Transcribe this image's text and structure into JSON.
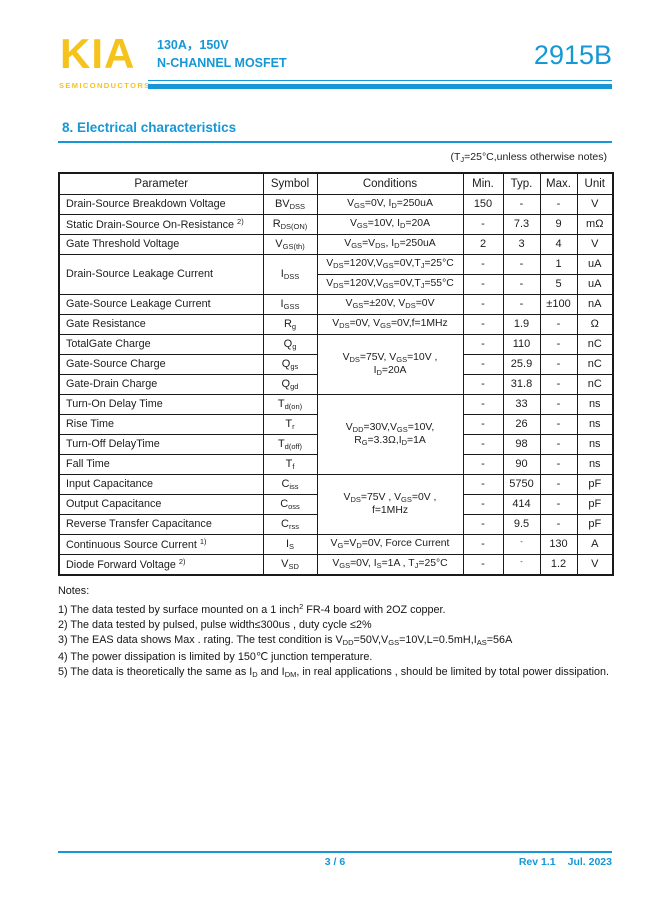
{
  "brand": {
    "logo": "KIA",
    "tagline": "SEMICONDUCTORS"
  },
  "header": {
    "spec_line1": "130A，150V",
    "spec_line2": "N-CHANNEL MOSFET",
    "part_number": "2915B"
  },
  "section": {
    "title": "8.  Electrical characteristics",
    "condition_note": "(T~J~=25°C,unless otherwise notes)"
  },
  "colors": {
    "accent_blue": "#1697d6",
    "brand_yellow": "#f6c31c",
    "table_border": "#1a1a1a"
  },
  "table": {
    "headers": [
      "Parameter",
      "Symbol",
      "Conditions",
      "Min.",
      "Typ.",
      "Max.",
      "Unit"
    ],
    "rows": [
      [
        {
          "t": "Drain-Source Breakdown Voltage",
          "col": "p"
        },
        {
          "t": "BV~DSS~",
          "col": "s"
        },
        {
          "t": "V~GS~=0V, I~D~=250uA",
          "col": "c"
        },
        {
          "t": "150",
          "col": "m"
        },
        {
          "t": "-",
          "col": "t"
        },
        {
          "t": "-",
          "col": "x"
        },
        {
          "t": "V",
          "col": "u"
        }
      ],
      [
        {
          "t": "Static Drain-Source On-Resistance ^2)^",
          "col": "p"
        },
        {
          "t": "R~DS(ON)~",
          "col": "s"
        },
        {
          "t": "V~GS~=10V, I~D~=20A",
          "col": "c"
        },
        {
          "t": "-",
          "col": "m"
        },
        {
          "t": "7.3",
          "col": "t"
        },
        {
          "t": "9",
          "col": "x"
        },
        {
          "t": "mΩ",
          "col": "u"
        }
      ],
      [
        {
          "t": "Gate Threshold Voltage",
          "col": "p"
        },
        {
          "t": "V~GS(th)~",
          "col": "s"
        },
        {
          "t": "V~GS~=V~DS~, I~D~=250uA",
          "col": "c"
        },
        {
          "t": "2",
          "col": "m"
        },
        {
          "t": "3",
          "col": "t"
        },
        {
          "t": "4",
          "col": "x"
        },
        {
          "t": "V",
          "col": "u"
        }
      ],
      [
        {
          "t": "Drain-Source Leakage Current",
          "col": "p",
          "rs": 2
        },
        {
          "t": "I~DSS~",
          "col": "s",
          "rs": 2
        },
        {
          "t": "V~DS~=120V,V~GS~=0V,T~J~=25°C",
          "col": "c"
        },
        {
          "t": "-",
          "col": "m"
        },
        {
          "t": "-",
          "col": "t"
        },
        {
          "t": "1",
          "col": "x"
        },
        {
          "t": "uA",
          "col": "u"
        }
      ],
      [
        {
          "t": "V~DS~=120V,V~GS~=0V,T~J~=55°C",
          "col": "c"
        },
        {
          "t": "-",
          "col": "m"
        },
        {
          "t": "-",
          "col": "t"
        },
        {
          "t": "5",
          "col": "x"
        },
        {
          "t": "uA",
          "col": "u"
        }
      ],
      [
        {
          "t": "Gate-Source Leakage Current",
          "col": "p"
        },
        {
          "t": "I~GSS~",
          "col": "s"
        },
        {
          "t": "V~GS~=±20V, V~DS~=0V",
          "col": "c"
        },
        {
          "t": "-",
          "col": "m"
        },
        {
          "t": "-",
          "col": "t"
        },
        {
          "t": "±100",
          "col": "x"
        },
        {
          "t": "nA",
          "col": "u"
        }
      ],
      [
        {
          "t": "Gate Resistance",
          "col": "p"
        },
        {
          "t": "R~g~",
          "col": "s"
        },
        {
          "t": "V~DS~=0V, V~GS~=0V,f=1MHz",
          "col": "c"
        },
        {
          "t": "-",
          "col": "m"
        },
        {
          "t": "1.9",
          "col": "t"
        },
        {
          "t": "-",
          "col": "x"
        },
        {
          "t": "Ω",
          "col": "u"
        }
      ],
      [
        {
          "t": "TotalGate Charge",
          "col": "p"
        },
        {
          "t": "Q~g~",
          "col": "s"
        },
        {
          "t": "V~DS~=75V, V~GS~=10V ,\nI~D~=20A",
          "col": "c",
          "rs": 3
        },
        {
          "t": "-",
          "col": "m"
        },
        {
          "t": "110",
          "col": "t"
        },
        {
          "t": "-",
          "col": "x"
        },
        {
          "t": "nC",
          "col": "u"
        }
      ],
      [
        {
          "t": "Gate-Source Charge",
          "col": "p"
        },
        {
          "t": "Q~gs~",
          "col": "s"
        },
        {
          "t": "-",
          "col": "m"
        },
        {
          "t": "25.9",
          "col": "t"
        },
        {
          "t": "-",
          "col": "x"
        },
        {
          "t": "nC",
          "col": "u"
        }
      ],
      [
        {
          "t": "Gate-Drain Charge",
          "col": "p"
        },
        {
          "t": "Q~gd~",
          "col": "s"
        },
        {
          "t": "-",
          "col": "m"
        },
        {
          "t": "31.8",
          "col": "t"
        },
        {
          "t": "-",
          "col": "x"
        },
        {
          "t": "nC",
          "col": "u"
        }
      ],
      [
        {
          "t": "Turn-On Delay Time",
          "col": "p"
        },
        {
          "t": "T~d(on)~",
          "col": "s"
        },
        {
          "t": "V~DD~=30V,V~GS~=10V,\nR~G~=3.3Ω,I~D~=1A",
          "col": "c",
          "rs": 4
        },
        {
          "t": "-",
          "col": "m"
        },
        {
          "t": "33",
          "col": "t"
        },
        {
          "t": "-",
          "col": "x"
        },
        {
          "t": "ns",
          "col": "u"
        }
      ],
      [
        {
          "t": "Rise Time",
          "col": "p"
        },
        {
          "t": "T~r~",
          "col": "s"
        },
        {
          "t": "-",
          "col": "m"
        },
        {
          "t": "26",
          "col": "t"
        },
        {
          "t": "-",
          "col": "x"
        },
        {
          "t": "ns",
          "col": "u"
        }
      ],
      [
        {
          "t": "Turn-Off DelayTime",
          "col": "p"
        },
        {
          "t": "T~d(off)~",
          "col": "s"
        },
        {
          "t": "-",
          "col": "m"
        },
        {
          "t": "98",
          "col": "t"
        },
        {
          "t": "-",
          "col": "x"
        },
        {
          "t": "ns",
          "col": "u"
        }
      ],
      [
        {
          "t": "Fall Time",
          "col": "p"
        },
        {
          "t": "T~f~",
          "col": "s"
        },
        {
          "t": "-",
          "col": "m"
        },
        {
          "t": "90",
          "col": "t"
        },
        {
          "t": "-",
          "col": "x"
        },
        {
          "t": "ns",
          "col": "u"
        }
      ],
      [
        {
          "t": "Input Capacitance",
          "col": "p"
        },
        {
          "t": "C~iss~",
          "col": "s"
        },
        {
          "t": "V~DS~=75V , V~GS~=0V ,\nf=1MHz",
          "col": "c",
          "rs": 3
        },
        {
          "t": "-",
          "col": "m"
        },
        {
          "t": "5750",
          "col": "t"
        },
        {
          "t": "-",
          "col": "x"
        },
        {
          "t": "pF",
          "col": "u"
        }
      ],
      [
        {
          "t": "Output Capacitance",
          "col": "p"
        },
        {
          "t": "C~oss~",
          "col": "s"
        },
        {
          "t": "-",
          "col": "m"
        },
        {
          "t": "414",
          "col": "t"
        },
        {
          "t": "-",
          "col": "x"
        },
        {
          "t": "pF",
          "col": "u"
        }
      ],
      [
        {
          "t": "Reverse Transfer Capacitance",
          "col": "p"
        },
        {
          "t": "C~rss~",
          "col": "s"
        },
        {
          "t": "-",
          "col": "m"
        },
        {
          "t": "9.5",
          "col": "t"
        },
        {
          "t": "-",
          "col": "x"
        },
        {
          "t": "pF",
          "col": "u"
        }
      ],
      [
        {
          "t": "Continuous Source Current ^1)^",
          "col": "p"
        },
        {
          "t": "I~S~",
          "col": "s"
        },
        {
          "t": "V~G~=V~D~=0V, Force Current",
          "col": "c"
        },
        {
          "t": "-",
          "col": "m"
        },
        {
          "t": "^-^",
          "col": "t"
        },
        {
          "t": "130",
          "col": "x"
        },
        {
          "t": "A",
          "col": "u"
        }
      ],
      [
        {
          "t": "Diode Forward Voltage ^2)^",
          "col": "p"
        },
        {
          "t": "V~SD~",
          "col": "s"
        },
        {
          "t": "V~GS~=0V, I~S~=1A , T~J~=25°C",
          "col": "c"
        },
        {
          "t": "-",
          "col": "m"
        },
        {
          "t": "^-^",
          "col": "t"
        },
        {
          "t": "1.2",
          "col": "x"
        },
        {
          "t": "V",
          "col": "u"
        }
      ]
    ]
  },
  "notes": {
    "title": "Notes:",
    "lines": [
      "1) The data tested by surface mounted on a 1 inch^2^ FR-4 board with 2OZ copper.",
      "2) The data tested by pulsed, pulse width≤300us , duty cycle ≤2%",
      "3) The EAS data shows Max . rating. The test condition is V~DD~=50V,V~GS~=10V,L=0.5mH,I~AS~=56A",
      "4) The power dissipation is limited by 150℃  junction temperature.",
      "5) The data is theoretically the same as I~D~ and I~DM~, in real applications , should be limited by total power dissipation."
    ]
  },
  "footer": {
    "page": "3 / 6",
    "revision": "Rev 1.1",
    "date": "Jul. 2023"
  }
}
